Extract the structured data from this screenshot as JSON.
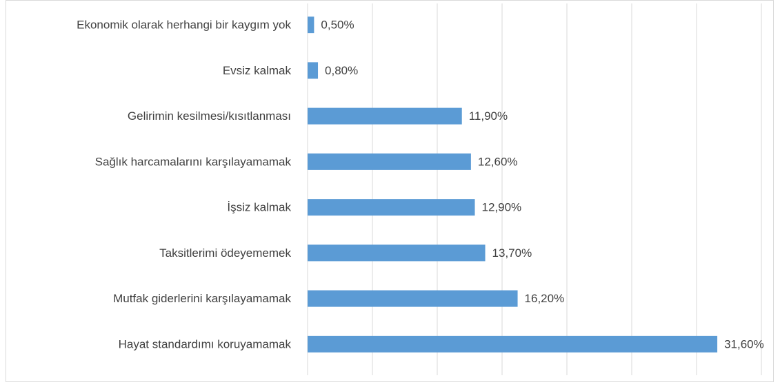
{
  "chart_data": {
    "type": "barh",
    "categories": [
      "Ekonomik olarak herhangi bir kaygım yok",
      "Evsiz kalmak",
      "Gelirimin kesilmesi/kısıtlanması",
      "Sağlık harcamalarını karşılayamamak",
      "İşsiz kalmak",
      "Taksitlerimi ödeyememek",
      "Mutfak giderlerini karşılayamamak",
      "Hayat standardımı koruyamamak"
    ],
    "values": [
      0.5,
      0.8,
      11.9,
      12.6,
      12.9,
      13.7,
      16.2,
      31.6
    ],
    "value_labels": [
      "0,50%",
      "0,80%",
      "11,90%",
      "12,60%",
      "12,90%",
      "13,70%",
      "16,20%",
      "31,60%"
    ],
    "color": "#5b9bd5",
    "xlim": [
      0,
      35
    ],
    "xticks": [
      0,
      5,
      10,
      15,
      20,
      25,
      30,
      35
    ],
    "grid": true
  }
}
